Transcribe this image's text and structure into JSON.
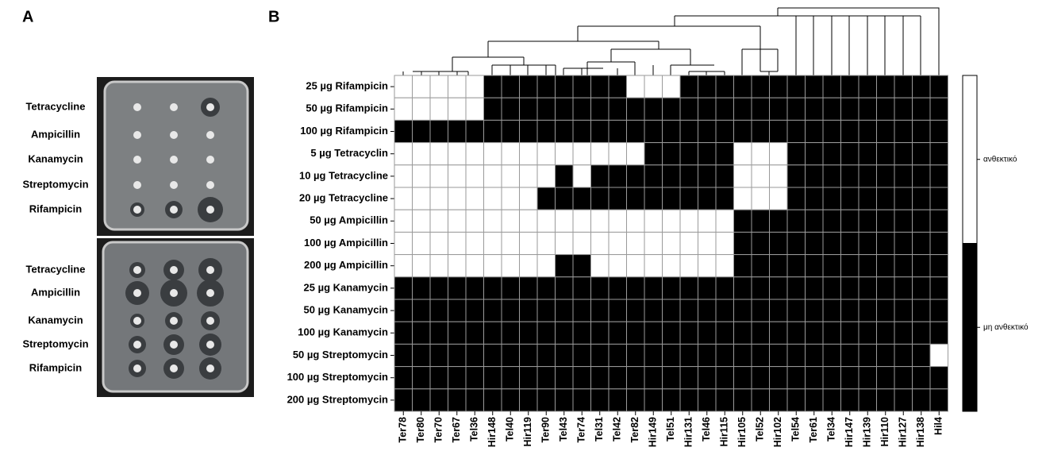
{
  "panel_a": {
    "label": "A",
    "plates": [
      [
        "Tetracycline",
        "Ampicillin",
        "Kanamycin",
        "Streptomycin",
        "Rifampicin"
      ],
      [
        "Tetracycline",
        "Ampicillin",
        "Kanamycin",
        "Streptomycin",
        "Rifampicin"
      ]
    ]
  },
  "chart_data": {
    "type": "heatmap",
    "panel_label": "B",
    "rows": [
      "25 µg Rifampicin",
      "50 µg Rifampicin",
      "100 µg Rifampicin",
      "5 µg Tetracyclin",
      "10 µg Tetracycline",
      "20 µg Tetracycline",
      "50 µg Ampicillin",
      "100 µg Ampicillin",
      "200 µg Ampicillin",
      "25 µg Kanamycin",
      "50 µg Kanamycin",
      "100 µg Kanamycin",
      "50 µg Streptomycin",
      "100 µg Streptomycin",
      "200 µg Streptomycin"
    ],
    "columns": [
      "Ter78",
      "Ter80",
      "Ter70",
      "Ter67",
      "Tel36",
      "Hir148",
      "Tel40",
      "Hir119",
      "Ter90",
      "Tel43",
      "Ter74",
      "Tel31",
      "Tel42",
      "Ter82",
      "Hir149",
      "Tel51",
      "Hir131",
      "Tel46",
      "Hir115",
      "Hir105",
      "Tel52",
      "Hir102",
      "Tel54",
      "Ter61",
      "Tel34",
      "Hir147",
      "Hir139",
      "Hir110",
      "Hir127",
      "Hir138",
      "Hil4"
    ],
    "z": [
      [
        1,
        1,
        1,
        1,
        1,
        0,
        0,
        0,
        0,
        0,
        0,
        0,
        0,
        1,
        1,
        1,
        0,
        0,
        0,
        0,
        0,
        0,
        0,
        0,
        0,
        0,
        0,
        0,
        0,
        0,
        0
      ],
      [
        1,
        1,
        1,
        1,
        1,
        0,
        0,
        0,
        0,
        0,
        0,
        0,
        0,
        0,
        0,
        0,
        0,
        0,
        0,
        0,
        0,
        0,
        0,
        0,
        0,
        0,
        0,
        0,
        0,
        0,
        0
      ],
      [
        0,
        0,
        0,
        0,
        0,
        0,
        0,
        0,
        0,
        0,
        0,
        0,
        0,
        0,
        0,
        0,
        0,
        0,
        0,
        0,
        0,
        0,
        0,
        0,
        0,
        0,
        0,
        0,
        0,
        0,
        0
      ],
      [
        1,
        1,
        1,
        1,
        1,
        1,
        1,
        1,
        1,
        1,
        1,
        1,
        1,
        1,
        0,
        0,
        0,
        0,
        0,
        1,
        1,
        1,
        0,
        0,
        0,
        0,
        0,
        0,
        0,
        0,
        0
      ],
      [
        1,
        1,
        1,
        1,
        1,
        1,
        1,
        1,
        1,
        0,
        1,
        0,
        0,
        0,
        0,
        0,
        0,
        0,
        0,
        1,
        1,
        1,
        0,
        0,
        0,
        0,
        0,
        0,
        0,
        0,
        0
      ],
      [
        1,
        1,
        1,
        1,
        1,
        1,
        1,
        1,
        0,
        0,
        0,
        0,
        0,
        0,
        0,
        0,
        0,
        0,
        0,
        1,
        1,
        1,
        0,
        0,
        0,
        0,
        0,
        0,
        0,
        0,
        0
      ],
      [
        1,
        1,
        1,
        1,
        1,
        1,
        1,
        1,
        1,
        1,
        1,
        1,
        1,
        1,
        1,
        1,
        1,
        1,
        1,
        0,
        0,
        0,
        0,
        0,
        0,
        0,
        0,
        0,
        0,
        0,
        0
      ],
      [
        1,
        1,
        1,
        1,
        1,
        1,
        1,
        1,
        1,
        1,
        1,
        1,
        1,
        1,
        1,
        1,
        1,
        1,
        1,
        0,
        0,
        0,
        0,
        0,
        0,
        0,
        0,
        0,
        0,
        0,
        0
      ],
      [
        1,
        1,
        1,
        1,
        1,
        1,
        1,
        1,
        1,
        0,
        0,
        1,
        1,
        1,
        1,
        1,
        1,
        1,
        1,
        0,
        0,
        0,
        0,
        0,
        0,
        0,
        0,
        0,
        0,
        0,
        0
      ],
      [
        0,
        0,
        0,
        0,
        0,
        0,
        0,
        0,
        0,
        0,
        0,
        0,
        0,
        0,
        0,
        0,
        0,
        0,
        0,
        0,
        0,
        0,
        0,
        0,
        0,
        0,
        0,
        0,
        0,
        0,
        0
      ],
      [
        0,
        0,
        0,
        0,
        0,
        0,
        0,
        0,
        0,
        0,
        0,
        0,
        0,
        0,
        0,
        0,
        0,
        0,
        0,
        0,
        0,
        0,
        0,
        0,
        0,
        0,
        0,
        0,
        0,
        0,
        0
      ],
      [
        0,
        0,
        0,
        0,
        0,
        0,
        0,
        0,
        0,
        0,
        0,
        0,
        0,
        0,
        0,
        0,
        0,
        0,
        0,
        0,
        0,
        0,
        0,
        0,
        0,
        0,
        0,
        0,
        0,
        0,
        0
      ],
      [
        0,
        0,
        0,
        0,
        0,
        0,
        0,
        0,
        0,
        0,
        0,
        0,
        0,
        0,
        0,
        0,
        0,
        0,
        0,
        0,
        0,
        0,
        0,
        0,
        0,
        0,
        0,
        0,
        0,
        0,
        1
      ],
      [
        0,
        0,
        0,
        0,
        0,
        0,
        0,
        0,
        0,
        0,
        0,
        0,
        0,
        0,
        0,
        0,
        0,
        0,
        0,
        0,
        0,
        0,
        0,
        0,
        0,
        0,
        0,
        0,
        0,
        0,
        0
      ],
      [
        0,
        0,
        0,
        0,
        0,
        0,
        0,
        0,
        0,
        0,
        0,
        0,
        0,
        0,
        0,
        0,
        0,
        0,
        0,
        0,
        0,
        0,
        0,
        0,
        0,
        0,
        0,
        0,
        0,
        0,
        0
      ]
    ],
    "legend": [
      {
        "label": "ανθεκτικό",
        "value": 1,
        "color": "#ffffff"
      },
      {
        "label": "μη ανθεκτικό",
        "value": 0,
        "color": "#000000"
      }
    ]
  }
}
